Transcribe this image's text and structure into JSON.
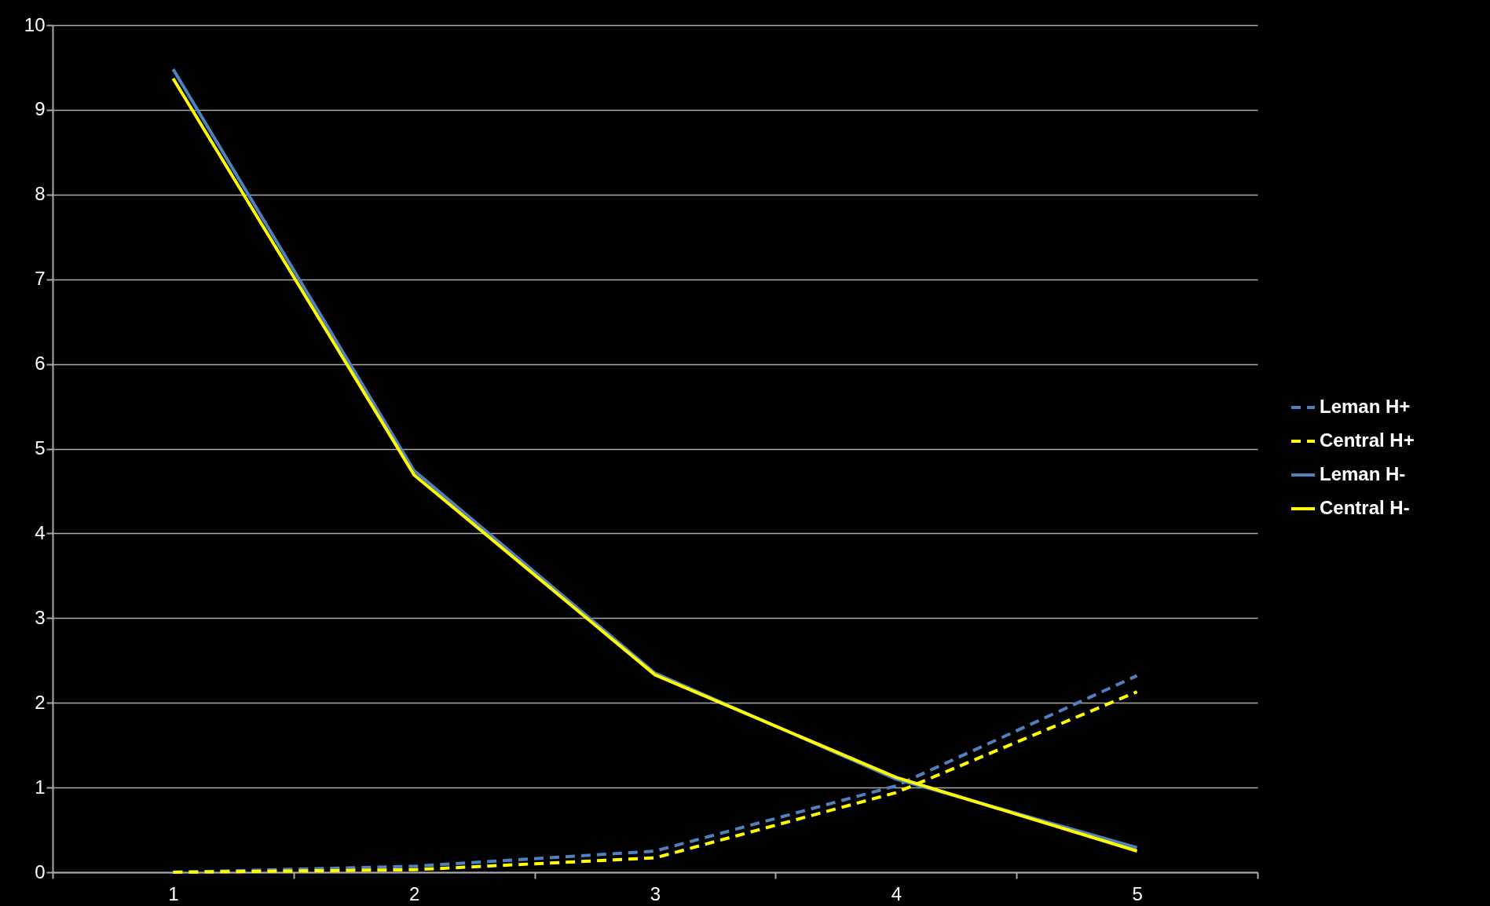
{
  "chart_data": {
    "type": "line",
    "categories": [
      "1",
      "2",
      "3",
      "4",
      "5"
    ],
    "ylim": [
      0,
      10
    ],
    "yticks": [
      0,
      1,
      2,
      3,
      4,
      5,
      6,
      7,
      8,
      9,
      10
    ],
    "grid": "y",
    "legend": "right",
    "series": [
      {
        "name": "Leman H+",
        "color": "#4f81bd",
        "line_style": "dashed",
        "values": [
          0.0,
          0.07,
          0.25,
          1.02,
          2.32
        ]
      },
      {
        "name": "Central H+",
        "color": "#ffff00",
        "line_style": "dashed",
        "values": [
          0.0,
          0.03,
          0.17,
          0.94,
          2.13
        ]
      },
      {
        "name": "Leman H-",
        "color": "#4f81bd",
        "line_style": "solid",
        "values": [
          9.48,
          4.74,
          2.35,
          1.1,
          0.29
        ]
      },
      {
        "name": "Central H-",
        "color": "#ffff00",
        "line_style": "solid",
        "values": [
          9.37,
          4.69,
          2.33,
          1.12,
          0.25
        ]
      }
    ]
  }
}
